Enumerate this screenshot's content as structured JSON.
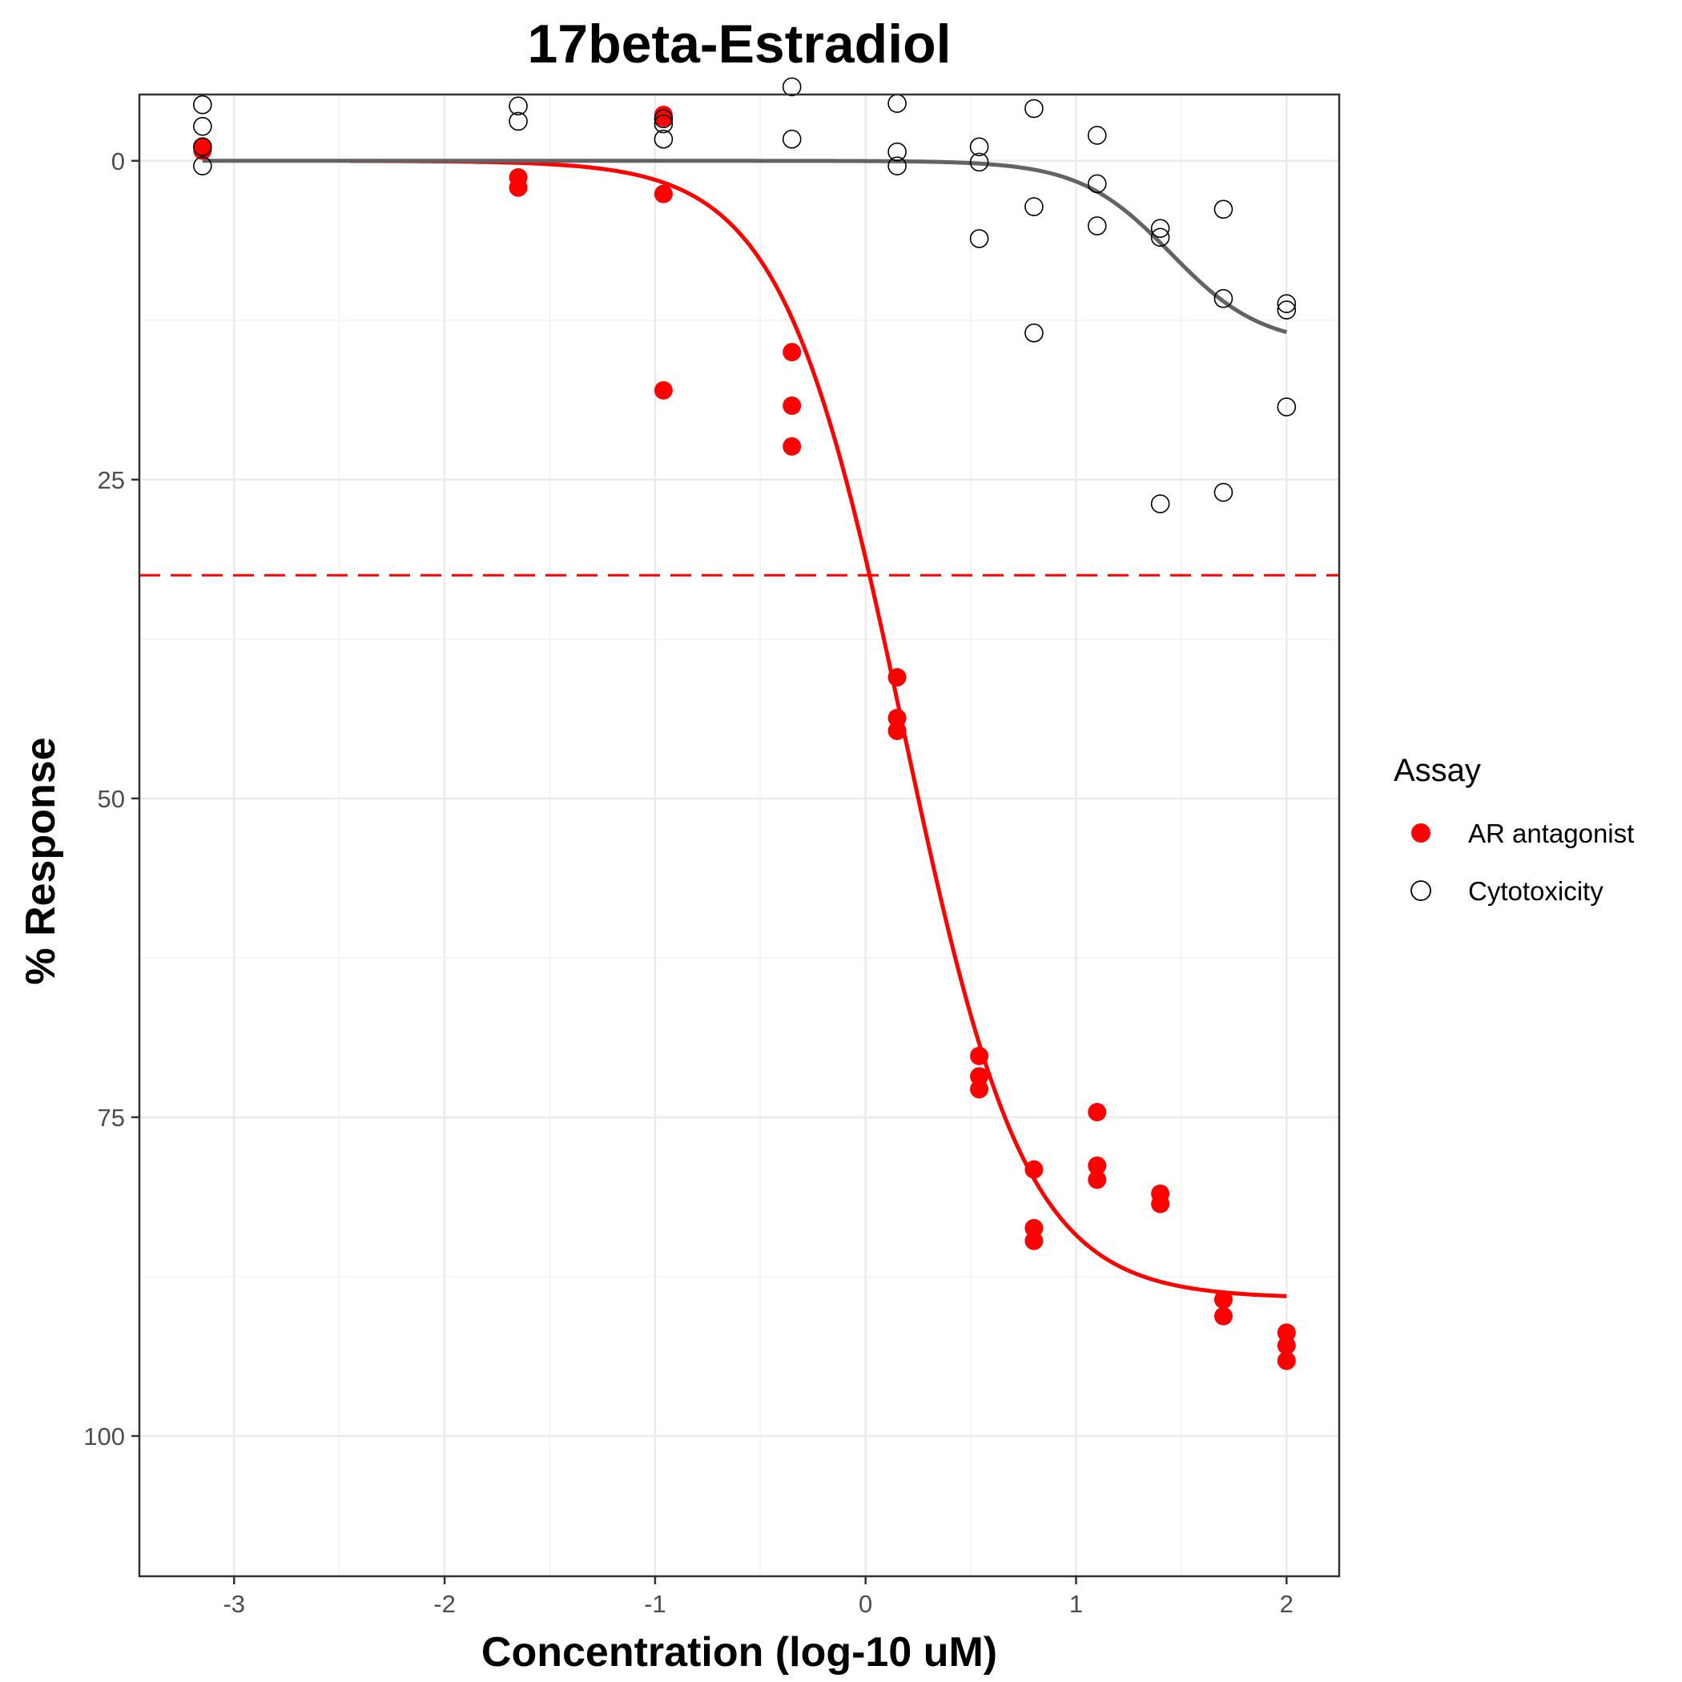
{
  "chart_data": {
    "type": "scatter",
    "title": "17beta-Estradiol",
    "xlabel": "Concentration (log-10 uM)",
    "ylabel": "% Response",
    "xlim": [
      -3.45,
      2.25
    ],
    "ylim": [
      111,
      -5.2
    ],
    "y_reversed": true,
    "grid": true,
    "x_ticks": [
      -3,
      -2,
      -1,
      0,
      1,
      2
    ],
    "x_tick_labels": [
      "-3",
      "-2",
      "-1",
      "0",
      "1",
      "2"
    ],
    "y_ticks": [
      0,
      25,
      50,
      75,
      100
    ],
    "y_tick_labels": [
      "0",
      "25",
      "50",
      "75",
      "100"
    ],
    "legend": {
      "title": "Assay",
      "position": "right",
      "entries": [
        "AR antagonist",
        "Cytotoxicity"
      ]
    },
    "threshold_line": {
      "y": 32.5,
      "style": "dashed",
      "color": "#ff0000"
    },
    "series": [
      {
        "name": "AR antagonist",
        "marker": "filled-circle",
        "color": "#ff0000",
        "points": [
          [
            -3.15,
            -1.1
          ],
          [
            -3.15,
            -0.8
          ],
          [
            -1.65,
            1.3
          ],
          [
            -1.65,
            2.1
          ],
          [
            -0.96,
            -3.6
          ],
          [
            -0.96,
            -3.4
          ],
          [
            -0.96,
            2.6
          ],
          [
            -0.96,
            18.0
          ],
          [
            -0.35,
            15.0
          ],
          [
            -0.35,
            19.2
          ],
          [
            -0.35,
            22.4
          ],
          [
            0.15,
            40.5
          ],
          [
            0.15,
            43.7
          ],
          [
            0.15,
            44.7
          ],
          [
            0.54,
            70.2
          ],
          [
            0.54,
            71.8
          ],
          [
            0.54,
            72.8
          ],
          [
            0.8,
            79.1
          ],
          [
            0.8,
            83.7
          ],
          [
            0.8,
            84.7
          ],
          [
            1.1,
            74.6
          ],
          [
            1.1,
            78.8
          ],
          [
            1.1,
            79.9
          ],
          [
            1.4,
            81.0
          ],
          [
            1.4,
            81.8
          ],
          [
            1.7,
            89.3
          ],
          [
            1.7,
            90.6
          ],
          [
            2.0,
            91.9
          ],
          [
            2.0,
            92.9
          ],
          [
            2.0,
            94.1
          ]
        ],
        "fit": {
          "model": "hill",
          "bottom": 0,
          "top": 89.2,
          "ac50_log": 0.18,
          "hill": 1.5,
          "x_range": [
            -2.45,
            2.0
          ]
        }
      },
      {
        "name": "Cytotoxicity",
        "marker": "open-circle",
        "color": "#000000",
        "points": [
          [
            -3.15,
            -4.4
          ],
          [
            -3.15,
            -2.7
          ],
          [
            -3.15,
            -1.1
          ],
          [
            -3.15,
            0.4
          ],
          [
            -1.65,
            -4.3
          ],
          [
            -1.65,
            -3.1
          ],
          [
            -0.96,
            -3.3
          ],
          [
            -0.96,
            -2.9
          ],
          [
            -0.96,
            -1.7
          ],
          [
            -0.35,
            -5.8
          ],
          [
            -0.35,
            -1.7
          ],
          [
            0.15,
            -4.5
          ],
          [
            0.15,
            -0.7
          ],
          [
            0.15,
            0.4
          ],
          [
            0.54,
            -1.1
          ],
          [
            0.54,
            0.1
          ],
          [
            0.54,
            6.1
          ],
          [
            0.8,
            -4.1
          ],
          [
            0.8,
            3.6
          ],
          [
            0.8,
            13.5
          ],
          [
            1.1,
            -2.0
          ],
          [
            1.1,
            1.8
          ],
          [
            1.1,
            5.1
          ],
          [
            1.4,
            5.3
          ],
          [
            1.4,
            6.0
          ],
          [
            1.4,
            26.9
          ],
          [
            1.7,
            3.8
          ],
          [
            1.7,
            10.8
          ],
          [
            1.7,
            26.0
          ],
          [
            2.0,
            11.2
          ],
          [
            2.0,
            11.7
          ],
          [
            2.0,
            19.3
          ]
        ],
        "fit": {
          "model": "hill",
          "bottom": 0,
          "top": 14.5,
          "ac50_log": 1.45,
          "hill": 2.0,
          "x_range": [
            -3.15,
            2.0
          ],
          "color": "#636363"
        }
      }
    ]
  }
}
